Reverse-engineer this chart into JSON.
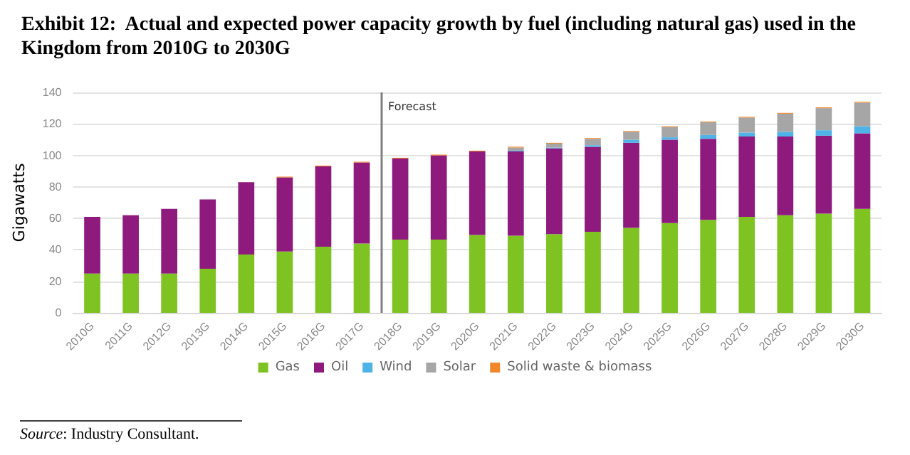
{
  "chart_data": {
    "type": "bar",
    "title": "Exhibit 12:  Actual and expected power capacity growth by fuel (including natural gas) used in the Kingdom from 2010G to 2030G",
    "ylabel": "Gigawatts",
    "categories": [
      "2010G",
      "2011G",
      "2012G",
      "2013G",
      "2014G",
      "2015G",
      "2016G",
      "2017G",
      "2018G",
      "2019G",
      "2020G",
      "2021G",
      "2022G",
      "2023G",
      "2024G",
      "2025G",
      "2026G",
      "2027G",
      "2028G",
      "2029G",
      "2030G"
    ],
    "stacked": true,
    "series": [
      {
        "name": "Gas",
        "color": "#7ec322",
        "values": [
          25,
          25,
          25,
          28,
          37,
          39,
          42,
          44,
          46.5,
          46.5,
          49.5,
          49,
          50,
          51.5,
          54,
          57,
          59,
          61,
          62,
          63,
          66
        ]
      },
      {
        "name": "Oil",
        "color": "#8e1a7e",
        "values": [
          36,
          37,
          41,
          44,
          46,
          47,
          51,
          51.5,
          51.5,
          53.5,
          53,
          53.5,
          54.5,
          54,
          54,
          53,
          51.5,
          51,
          50,
          49.5,
          48
        ]
      },
      {
        "name": "Wind",
        "color": "#4fb3e8",
        "values": [
          0,
          0,
          0,
          0,
          0,
          0,
          0,
          0,
          0,
          0,
          0,
          0.5,
          0.5,
          1,
          2,
          1.5,
          2.5,
          2.5,
          3,
          3.5,
          4.5
        ]
      },
      {
        "name": "Solar",
        "color": "#a6a6a6",
        "values": [
          0,
          0,
          0,
          0,
          0,
          0,
          0,
          0,
          0,
          0,
          null,
          2,
          2.5,
          4,
          5,
          6.5,
          8,
          9.5,
          11.5,
          14,
          15
        ]
      },
      {
        "name": "Solid waste & biomass",
        "color": "#f0882a",
        "values": [
          0,
          0,
          0,
          0,
          0,
          0.5,
          0.5,
          0.5,
          0.5,
          0.5,
          0.5,
          0.5,
          0.5,
          0.5,
          0.5,
          0.5,
          0.5,
          0.5,
          0.5,
          0.5,
          0.5
        ]
      }
    ],
    "ylim": [
      0,
      140
    ],
    "yticks": [
      0,
      20,
      40,
      60,
      80,
      100,
      120,
      140
    ],
    "grid": "y",
    "legend": "bottom",
    "ref_lines": [
      {
        "axis": "x",
        "value": "2018G",
        "label": "Forecast",
        "color": "#7f7f7f"
      }
    ],
    "annotations": [
      "Source: Industry Consultant."
    ]
  }
}
